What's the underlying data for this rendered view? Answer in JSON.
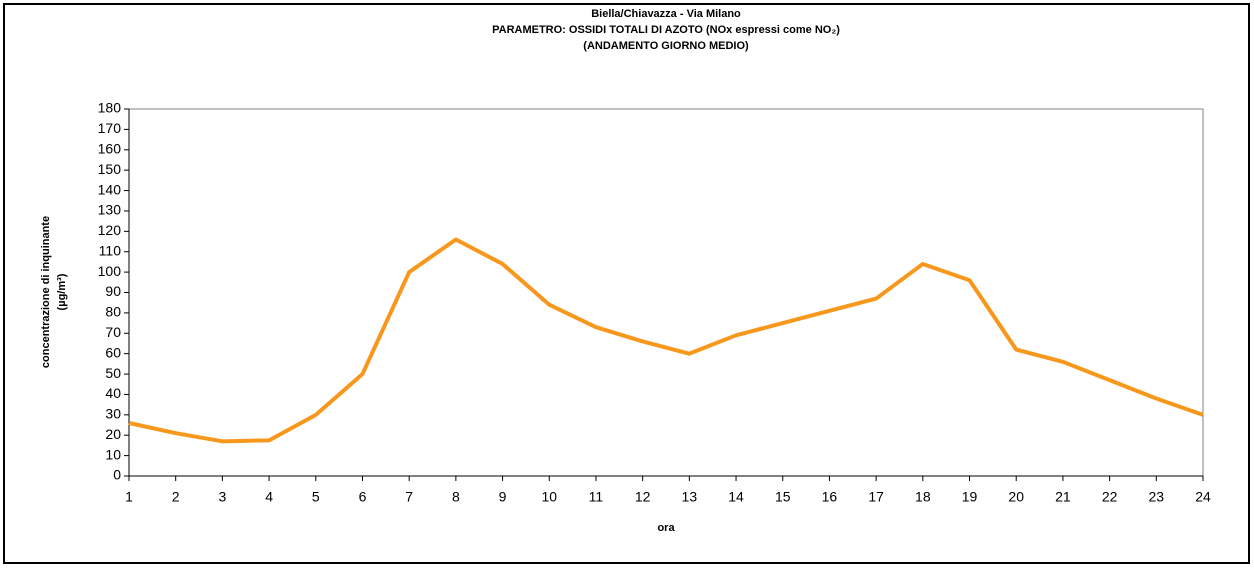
{
  "chart_data": {
    "type": "line",
    "title": [
      "Biella/Chiavazza - Via Milano",
      "PARAMETRO: OSSIDI TOTALI DI AZOTO (NOx espressi come NO₂)",
      "(ANDAMENTO GIORNO MEDIO)"
    ],
    "xlabel": "ora",
    "ylabel": [
      "concentrazione di inquinante",
      "(µg/m³)"
    ],
    "x": [
      1,
      2,
      3,
      4,
      5,
      6,
      7,
      8,
      9,
      10,
      11,
      12,
      13,
      14,
      15,
      16,
      17,
      18,
      19,
      20,
      21,
      22,
      23,
      24
    ],
    "series": [
      {
        "color": "#f7981d",
        "values": [
          26,
          21,
          17,
          17.5,
          30,
          50,
          100,
          116,
          104,
          84,
          73,
          66,
          60,
          69,
          75,
          81,
          87,
          104,
          96,
          62,
          56,
          47,
          38,
          30
        ]
      }
    ],
    "xlim": [
      1,
      24
    ],
    "xticks": [
      1,
      2,
      3,
      4,
      5,
      6,
      7,
      8,
      9,
      10,
      11,
      12,
      13,
      14,
      15,
      16,
      17,
      18,
      19,
      20,
      21,
      22,
      23,
      24
    ],
    "ylim": [
      0,
      180
    ],
    "yticks": [
      0,
      10,
      20,
      30,
      40,
      50,
      60,
      70,
      80,
      90,
      100,
      110,
      120,
      130,
      140,
      150,
      160,
      170,
      180
    ],
    "grid": false
  }
}
